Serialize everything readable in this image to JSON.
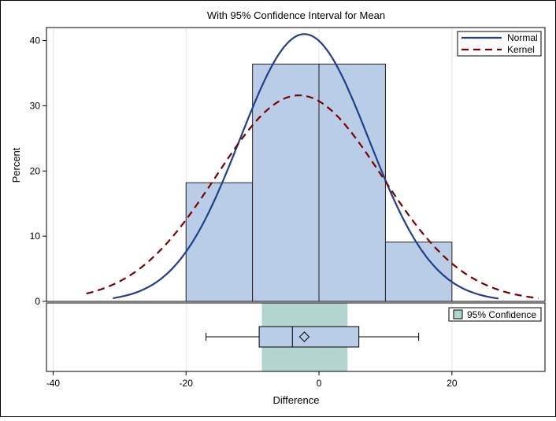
{
  "chart_data": {
    "type": "bar",
    "title": "With 95% Confidence Interval for Mean",
    "xlabel": "Difference",
    "ylabel": "Percent",
    "xlim": [
      -41,
      34
    ],
    "ylim": [
      0,
      42
    ],
    "x_ticks": [
      -40,
      -20,
      0,
      20
    ],
    "y_ticks": [
      0,
      10,
      20,
      30,
      40
    ],
    "grid": true,
    "legend_position": "top-right",
    "histogram": {
      "bins": [
        {
          "start": -20,
          "end": -10,
          "percent": 18.2
        },
        {
          "start": -10,
          "end": 0,
          "percent": 36.4
        },
        {
          "start": 0,
          "end": 10,
          "percent": 36.4
        },
        {
          "start": 10,
          "end": 20,
          "percent": 9.1
        }
      ]
    },
    "series": [
      {
        "name": "Normal",
        "kind": "normal",
        "mean": -2.2,
        "sd": 9.7,
        "peak": 41.0,
        "x_range": [
          -31,
          27
        ],
        "color": "#1f3f8a",
        "dash": "solid"
      },
      {
        "name": "Kernel",
        "kind": "kernel",
        "mean": -3.0,
        "sd": 12.5,
        "peak": 31.6,
        "x_range": [
          -35,
          33
        ],
        "color": "#7a0000",
        "dash": "dashed"
      }
    ],
    "boxplot": {
      "whisker_low": -17,
      "q1": -9,
      "median": -4,
      "mean": -2.2,
      "q3": 6,
      "whisker_high": 15
    },
    "confidence_band": {
      "label": "95% Confidence",
      "low": -8.6,
      "high": 4.3,
      "color": "#b2d5cf"
    },
    "colors": {
      "bar_fill": "#b9cde7",
      "bar_stroke": "#222222",
      "grid": "#e3e3e3"
    }
  }
}
